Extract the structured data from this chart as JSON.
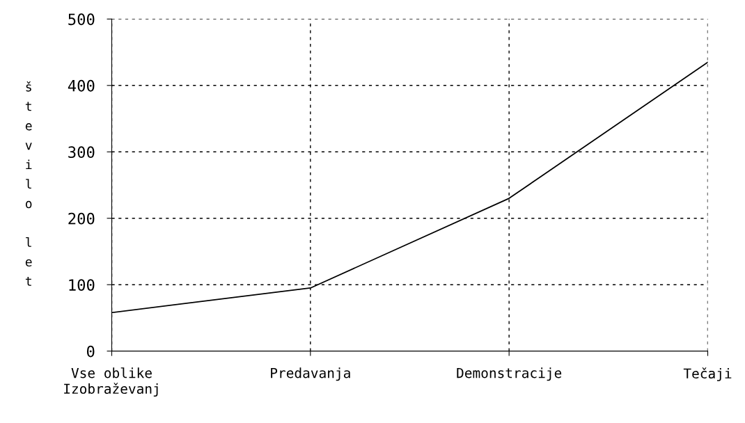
{
  "chart_data": {
    "type": "line",
    "ylabel": "število let",
    "categories": [
      "Vse oblike\nIzobraževanj",
      "Predavanja",
      "Demonstracije",
      "Tečaji"
    ],
    "series": [
      {
        "color": "#000000",
        "values": [
          58,
          95,
          230,
          435
        ]
      }
    ],
    "ylim": [
      0,
      500
    ],
    "yticks": [
      0,
      100,
      200,
      300,
      400,
      500
    ],
    "grid": true,
    "legend": false,
    "marker": "none",
    "line_style": "solid"
  }
}
